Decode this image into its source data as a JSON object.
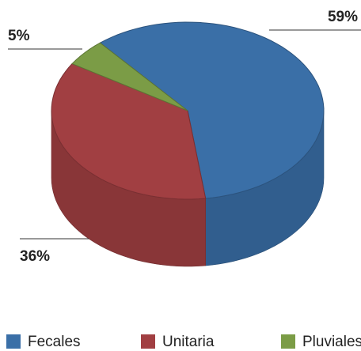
{
  "chart_data": {
    "type": "pie",
    "categories": [
      "Fecales",
      "Unitaria",
      "Pluviales"
    ],
    "values": [
      59,
      36,
      5
    ],
    "value_labels": [
      "59%",
      "36%",
      "5%"
    ],
    "colors": [
      "#3a6fa7",
      "#a13f42",
      "#7b9c46"
    ]
  }
}
